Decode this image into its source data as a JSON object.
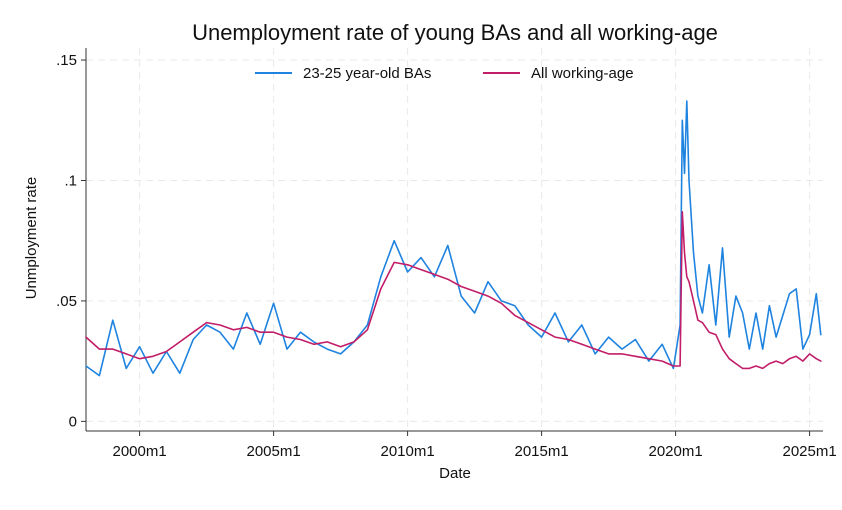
{
  "chart_data": {
    "type": "line",
    "title": "Unemployment rate of young BAs and all working-age",
    "xlabel": "Date",
    "ylabel": "Unmployment rate",
    "x_ticks": [
      "2000m1",
      "2005m1",
      "2010m1",
      "2015m1",
      "2020m1",
      "2025m1"
    ],
    "y_ticks": [
      "0",
      ".05",
      ".1",
      ".15"
    ],
    "y_tick_values": [
      0,
      0.05,
      0.1,
      0.15
    ],
    "xlim": [
      "1998m1",
      "2025m7"
    ],
    "ylim": [
      -0.004,
      0.155
    ],
    "grid": true,
    "legend": "top-center",
    "series": [
      {
        "name": "23-25 year-old BAs",
        "color": "#1f83e0",
        "x": [
          "1998m1",
          "1998m7",
          "1999m1",
          "1999m7",
          "2000m1",
          "2000m7",
          "2001m1",
          "2001m7",
          "2002m1",
          "2002m7",
          "2003m1",
          "2003m7",
          "2004m1",
          "2004m7",
          "2005m1",
          "2005m7",
          "2006m1",
          "2006m7",
          "2007m1",
          "2007m7",
          "2008m1",
          "2008m7",
          "2009m1",
          "2009m7",
          "2010m1",
          "2010m7",
          "2011m1",
          "2011m7",
          "2012m1",
          "2012m7",
          "2013m1",
          "2013m7",
          "2014m1",
          "2014m7",
          "2015m1",
          "2015m7",
          "2016m1",
          "2016m7",
          "2017m1",
          "2017m7",
          "2018m1",
          "2018m7",
          "2019m1",
          "2019m7",
          "2019m12",
          "2020m3",
          "2020m4",
          "2020m5",
          "2020m6",
          "2020m7",
          "2020m9",
          "2020m11",
          "2021m1",
          "2021m4",
          "2021m7",
          "2021m10",
          "2022m1",
          "2022m4",
          "2022m7",
          "2022m10",
          "2023m1",
          "2023m4",
          "2023m7",
          "2023m10",
          "2024m1",
          "2024m4",
          "2024m7",
          "2024m10",
          "2025m1",
          "2025m4",
          "2025m6"
        ],
        "y": [
          0.023,
          0.019,
          0.042,
          0.022,
          0.031,
          0.02,
          0.029,
          0.02,
          0.034,
          0.04,
          0.037,
          0.03,
          0.045,
          0.032,
          0.049,
          0.03,
          0.037,
          0.033,
          0.03,
          0.028,
          0.033,
          0.04,
          0.06,
          0.075,
          0.062,
          0.068,
          0.06,
          0.073,
          0.052,
          0.045,
          0.058,
          0.05,
          0.048,
          0.04,
          0.035,
          0.045,
          0.033,
          0.04,
          0.028,
          0.035,
          0.03,
          0.034,
          0.025,
          0.032,
          0.022,
          0.04,
          0.125,
          0.103,
          0.133,
          0.1,
          0.07,
          0.052,
          0.045,
          0.065,
          0.04,
          0.072,
          0.035,
          0.052,
          0.045,
          0.03,
          0.045,
          0.03,
          0.048,
          0.035,
          0.044,
          0.053,
          0.055,
          0.03,
          0.036,
          0.053,
          0.036
        ]
      },
      {
        "name": "All working-age",
        "color": "#c21d68",
        "x": [
          "1998m1",
          "1998m7",
          "1999m1",
          "1999m7",
          "2000m1",
          "2000m7",
          "2001m1",
          "2001m7",
          "2002m1",
          "2002m7",
          "2003m1",
          "2003m7",
          "2004m1",
          "2004m7",
          "2005m1",
          "2005m7",
          "2006m1",
          "2006m7",
          "2007m1",
          "2007m7",
          "2008m1",
          "2008m7",
          "2009m1",
          "2009m7",
          "2010m1",
          "2010m7",
          "2011m1",
          "2011m7",
          "2012m1",
          "2012m7",
          "2013m1",
          "2013m7",
          "2014m1",
          "2014m7",
          "2015m1",
          "2015m7",
          "2016m1",
          "2016m7",
          "2017m1",
          "2017m7",
          "2018m1",
          "2018m7",
          "2019m1",
          "2019m7",
          "2019m12",
          "2020m3",
          "2020m4",
          "2020m5",
          "2020m6",
          "2020m7",
          "2020m9",
          "2020m11",
          "2021m1",
          "2021m4",
          "2021m7",
          "2021m10",
          "2022m1",
          "2022m4",
          "2022m7",
          "2022m10",
          "2023m1",
          "2023m4",
          "2023m7",
          "2023m10",
          "2024m1",
          "2024m4",
          "2024m7",
          "2024m10",
          "2025m1",
          "2025m4",
          "2025m6"
        ],
        "y": [
          0.035,
          0.03,
          0.03,
          0.028,
          0.026,
          0.027,
          0.029,
          0.033,
          0.037,
          0.041,
          0.04,
          0.038,
          0.039,
          0.037,
          0.037,
          0.035,
          0.034,
          0.032,
          0.033,
          0.031,
          0.033,
          0.038,
          0.055,
          0.066,
          0.065,
          0.063,
          0.061,
          0.059,
          0.056,
          0.054,
          0.052,
          0.049,
          0.044,
          0.041,
          0.038,
          0.035,
          0.034,
          0.032,
          0.03,
          0.028,
          0.028,
          0.027,
          0.026,
          0.025,
          0.023,
          0.023,
          0.087,
          0.07,
          0.06,
          0.058,
          0.05,
          0.042,
          0.041,
          0.037,
          0.036,
          0.03,
          0.026,
          0.024,
          0.022,
          0.022,
          0.023,
          0.022,
          0.024,
          0.025,
          0.024,
          0.026,
          0.027,
          0.025,
          0.028,
          0.026,
          0.025
        ]
      }
    ]
  }
}
